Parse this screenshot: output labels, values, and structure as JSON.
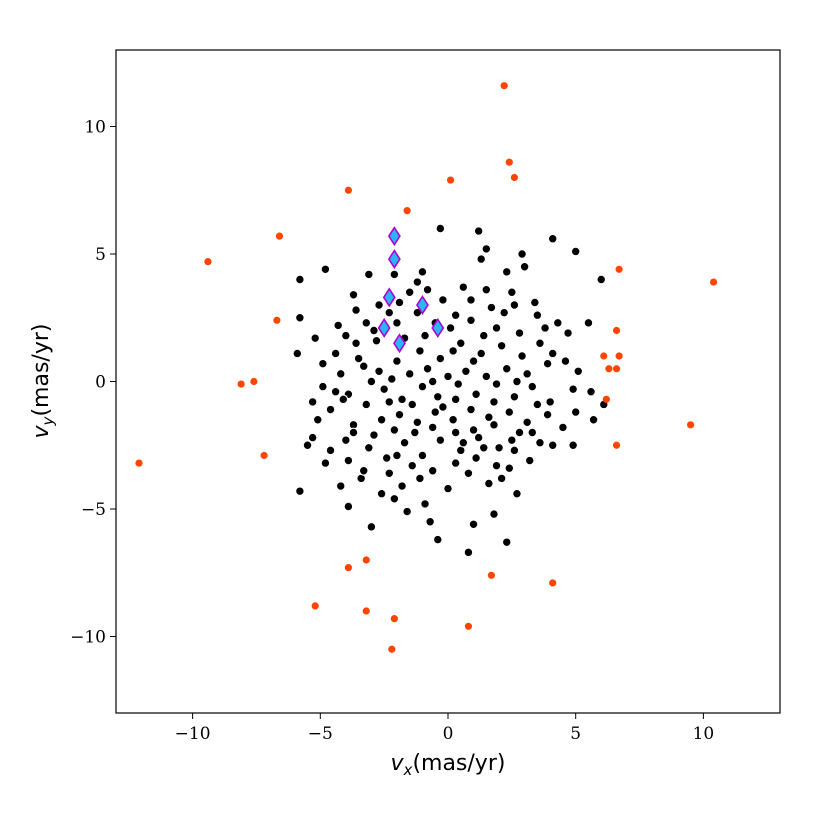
{
  "chart_data": {
    "type": "scatter",
    "title": "",
    "xlabel": {
      "symbol": "v",
      "subscript": "x",
      "unit": "(mas/yr)"
    },
    "ylabel": {
      "symbol": "v",
      "subscript": "y",
      "unit": "(mas/yr)"
    },
    "xlim": [
      -13,
      13
    ],
    "ylim": [
      -13,
      13
    ],
    "xticks": [
      -10,
      -5,
      0,
      5,
      10
    ],
    "yticks": [
      -10,
      -5,
      0,
      5,
      10
    ],
    "xtick_labels": [
      "−10",
      "−5",
      "0",
      "5",
      "10"
    ],
    "ytick_labels": [
      "−10",
      "−5",
      "0",
      "5",
      "10"
    ],
    "grid": false,
    "colors": {
      "members": "#000000",
      "members_edge": "#ffffff",
      "outliers": "#ff4500",
      "highlight_fill": "#29b6f6",
      "highlight_edge": "#b000d0"
    },
    "series": [
      {
        "marker": "circle",
        "color": "#000000",
        "points": [
          [
            -1.7,
            1.7
          ],
          [
            -3.1,
            4.2
          ],
          [
            -2.1,
            4.2
          ],
          [
            -1.2,
            3.9
          ],
          [
            -0.8,
            3.6
          ],
          [
            -0.3,
            6.0
          ],
          [
            1.2,
            5.9
          ],
          [
            1.3,
            4.8
          ],
          [
            2.3,
            4.3
          ],
          [
            3.0,
            4.5
          ],
          [
            4.1,
            5.6
          ],
          [
            5.0,
            5.1
          ],
          [
            6.0,
            4.0
          ],
          [
            -5.8,
            4.0
          ],
          [
            -4.8,
            4.4
          ],
          [
            -3.7,
            3.4
          ],
          [
            -4.3,
            2.2
          ],
          [
            -5.2,
            1.7
          ],
          [
            -5.8,
            2.5
          ],
          [
            -5.9,
            1.1
          ],
          [
            -4.4,
            1.1
          ],
          [
            -3.2,
            2.3
          ],
          [
            -2.8,
            1.6
          ],
          [
            -2.3,
            2.7
          ],
          [
            -1.5,
            3.5
          ],
          [
            -1.2,
            2.7
          ],
          [
            -0.5,
            2.3
          ],
          [
            0.3,
            2.6
          ],
          [
            0.9,
            3.2
          ],
          [
            1.7,
            2.9
          ],
          [
            2.6,
            3.0
          ],
          [
            3.4,
            3.1
          ],
          [
            3.8,
            2.1
          ],
          [
            4.7,
            1.9
          ],
          [
            5.5,
            2.3
          ],
          [
            4.6,
            0.8
          ],
          [
            3.6,
            1.5
          ],
          [
            2.9,
            1.0
          ],
          [
            2.1,
            1.4
          ],
          [
            1.3,
            1.1
          ],
          [
            0.5,
            1.5
          ],
          [
            -0.3,
            0.9
          ],
          [
            -1.1,
            1.2
          ],
          [
            -2.0,
            0.8
          ],
          [
            -2.7,
            0.4
          ],
          [
            -3.5,
            0.9
          ],
          [
            -4.2,
            0.3
          ],
          [
            -4.9,
            -0.2
          ],
          [
            -5.3,
            -0.8
          ],
          [
            -4.6,
            -1.1
          ],
          [
            -3.9,
            -0.5
          ],
          [
            -3.2,
            -0.9
          ],
          [
            -2.5,
            -0.3
          ],
          [
            -1.8,
            -0.7
          ],
          [
            -1.0,
            -0.2
          ],
          [
            -0.4,
            -0.6
          ],
          [
            0.4,
            -0.1
          ],
          [
            1.1,
            -0.5
          ],
          [
            1.9,
            -0.1
          ],
          [
            2.6,
            -0.6
          ],
          [
            3.3,
            -0.2
          ],
          [
            4.0,
            -0.8
          ],
          [
            5.0,
            -1.2
          ],
          [
            5.6,
            -0.4
          ],
          [
            6.1,
            -0.9
          ],
          [
            5.7,
            -1.5
          ],
          [
            4.5,
            -1.8
          ],
          [
            3.6,
            -2.4
          ],
          [
            2.8,
            -2.0
          ],
          [
            2.0,
            -2.6
          ],
          [
            1.2,
            -2.2
          ],
          [
            0.5,
            -2.7
          ],
          [
            -0.3,
            -2.3
          ],
          [
            -1.0,
            -2.9
          ],
          [
            -1.7,
            -2.4
          ],
          [
            -2.4,
            -3.0
          ],
          [
            -3.1,
            -2.6
          ],
          [
            -3.9,
            -3.1
          ],
          [
            -4.6,
            -2.7
          ],
          [
            -5.3,
            -2.2
          ],
          [
            -4.2,
            -4.1
          ],
          [
            -3.4,
            -3.8
          ],
          [
            -2.6,
            -4.4
          ],
          [
            -1.8,
            -4.1
          ],
          [
            -0.9,
            -4.8
          ],
          [
            0.0,
            -4.2
          ],
          [
            0.8,
            -3.6
          ],
          [
            1.6,
            -4.0
          ],
          [
            2.4,
            -3.4
          ],
          [
            3.2,
            -3.1
          ],
          [
            2.7,
            -4.4
          ],
          [
            1.8,
            -5.2
          ],
          [
            1.0,
            -5.6
          ],
          [
            -0.7,
            -5.5
          ],
          [
            -1.6,
            -5.1
          ],
          [
            -2.1,
            -4.6
          ],
          [
            -3.0,
            -5.7
          ],
          [
            -3.9,
            -4.9
          ],
          [
            -5.8,
            -4.3
          ],
          [
            -0.4,
            -6.2
          ],
          [
            0.8,
            -6.7
          ],
          [
            2.3,
            -6.3
          ],
          [
            -3.0,
            -0.0
          ],
          [
            -2.2,
            0.1
          ],
          [
            -1.5,
            0.3
          ],
          [
            -0.8,
            0.5
          ],
          [
            0.0,
            0.2
          ],
          [
            0.7,
            0.4
          ],
          [
            1.5,
            0.2
          ],
          [
            2.3,
            0.5
          ],
          [
            3.1,
            0.3
          ],
          [
            3.9,
            0.7
          ],
          [
            -2.6,
            -1.5
          ],
          [
            -1.9,
            -1.3
          ],
          [
            -1.2,
            -1.6
          ],
          [
            -0.5,
            -1.2
          ],
          [
            0.2,
            -1.5
          ],
          [
            0.9,
            -1.1
          ],
          [
            1.6,
            -1.4
          ],
          [
            2.4,
            -1.2
          ],
          [
            3.1,
            -1.6
          ],
          [
            3.9,
            -1.3
          ],
          [
            -4.0,
            1.8
          ],
          [
            -3.6,
            1.5
          ],
          [
            -2.9,
            2.0
          ],
          [
            -2.0,
            2.3
          ],
          [
            -0.9,
            1.8
          ],
          [
            0.1,
            2.1
          ],
          [
            0.9,
            2.4
          ],
          [
            1.9,
            2.1
          ],
          [
            2.8,
            1.9
          ],
          [
            3.5,
            2.6
          ],
          [
            4.3,
            2.3
          ],
          [
            -4.9,
            0.7
          ],
          [
            -4.4,
            -0.4
          ],
          [
            -3.7,
            -1.7
          ],
          [
            -2.9,
            -2.1
          ],
          [
            -2.1,
            -1.9
          ],
          [
            -1.3,
            -2.0
          ],
          [
            -0.6,
            -1.8
          ],
          [
            0.3,
            -2.0
          ],
          [
            1.0,
            -1.9
          ],
          [
            1.8,
            -1.7
          ],
          [
            2.5,
            -2.3
          ],
          [
            3.3,
            -2.0
          ],
          [
            4.1,
            -2.5
          ],
          [
            4.9,
            -2.5
          ],
          [
            -5.1,
            -1.5
          ],
          [
            -4.0,
            -2.3
          ],
          [
            -3.3,
            -3.5
          ],
          [
            -2.3,
            -3.6
          ],
          [
            -1.4,
            -3.3
          ],
          [
            -0.6,
            -3.5
          ],
          [
            0.3,
            -3.2
          ],
          [
            1.1,
            -3.0
          ],
          [
            1.9,
            -3.3
          ],
          [
            2.6,
            -2.7
          ],
          [
            -0.2,
            3.2
          ],
          [
            0.6,
            3.7
          ],
          [
            1.5,
            3.6
          ],
          [
            2.5,
            3.5
          ],
          [
            -1.0,
            4.3
          ],
          [
            1.5,
            5.2
          ],
          [
            2.9,
            5.0
          ],
          [
            -0.6,
            0.0
          ],
          [
            0.3,
            -0.7
          ],
          [
            1.0,
            0.8
          ],
          [
            1.8,
            -0.8
          ],
          [
            2.7,
            0.0
          ],
          [
            3.5,
            -0.9
          ],
          [
            -1.4,
            -0.9
          ],
          [
            -2.3,
            -0.8
          ],
          [
            -3.3,
            0.6
          ],
          [
            -4.1,
            -0.7
          ],
          [
            -3.6,
            2.8
          ],
          [
            -2.7,
            3.0
          ],
          [
            -1.9,
            3.1
          ],
          [
            0.2,
            1.2
          ],
          [
            1.4,
            1.8
          ],
          [
            2.2,
            2.7
          ],
          [
            4.1,
            1.1
          ],
          [
            5.1,
            0.4
          ],
          [
            4.9,
            -0.3
          ],
          [
            -0.2,
            -1.0
          ],
          [
            0.6,
            -2.4
          ],
          [
            1.4,
            -2.6
          ],
          [
            2.1,
            -3.8
          ],
          [
            -1.1,
            -3.8
          ],
          [
            -2.0,
            -2.9
          ],
          [
            -3.7,
            -2.0
          ],
          [
            -4.8,
            -3.2
          ],
          [
            -5.5,
            -2.5
          ]
        ]
      },
      {
        "marker": "circle",
        "color": "#ff4500",
        "points": [
          [
            2.2,
            11.6
          ],
          [
            2.4,
            8.6
          ],
          [
            2.6,
            8.0
          ],
          [
            0.1,
            7.9
          ],
          [
            -3.9,
            7.5
          ],
          [
            -1.6,
            6.7
          ],
          [
            -6.6,
            5.7
          ],
          [
            -9.4,
            4.7
          ],
          [
            -6.7,
            2.4
          ],
          [
            6.7,
            4.4
          ],
          [
            10.4,
            3.9
          ],
          [
            6.6,
            2.0
          ],
          [
            6.1,
            1.0
          ],
          [
            6.7,
            1.0
          ],
          [
            6.3,
            0.5
          ],
          [
            6.6,
            0.5
          ],
          [
            6.2,
            -0.7
          ],
          [
            6.6,
            -2.5
          ],
          [
            9.5,
            -1.7
          ],
          [
            -8.1,
            -0.1
          ],
          [
            -7.6,
            0.0
          ],
          [
            -7.2,
            -2.9
          ],
          [
            -12.1,
            -3.2
          ],
          [
            -3.9,
            -7.3
          ],
          [
            -3.2,
            -7.0
          ],
          [
            -5.2,
            -8.8
          ],
          [
            -3.2,
            -9.0
          ],
          [
            -2.1,
            -9.3
          ],
          [
            -2.2,
            -10.5
          ],
          [
            0.8,
            -9.6
          ],
          [
            1.7,
            -7.6
          ],
          [
            4.1,
            -7.9
          ]
        ]
      },
      {
        "marker": "diamond",
        "color": "#29b6f6",
        "points": [
          [
            -2.1,
            5.7
          ],
          [
            -2.1,
            4.8
          ],
          [
            -2.3,
            3.3
          ],
          [
            -1.0,
            3.0
          ],
          [
            -2.5,
            2.1
          ],
          [
            -0.4,
            2.1
          ],
          [
            -1.9,
            1.5
          ]
        ]
      }
    ]
  }
}
